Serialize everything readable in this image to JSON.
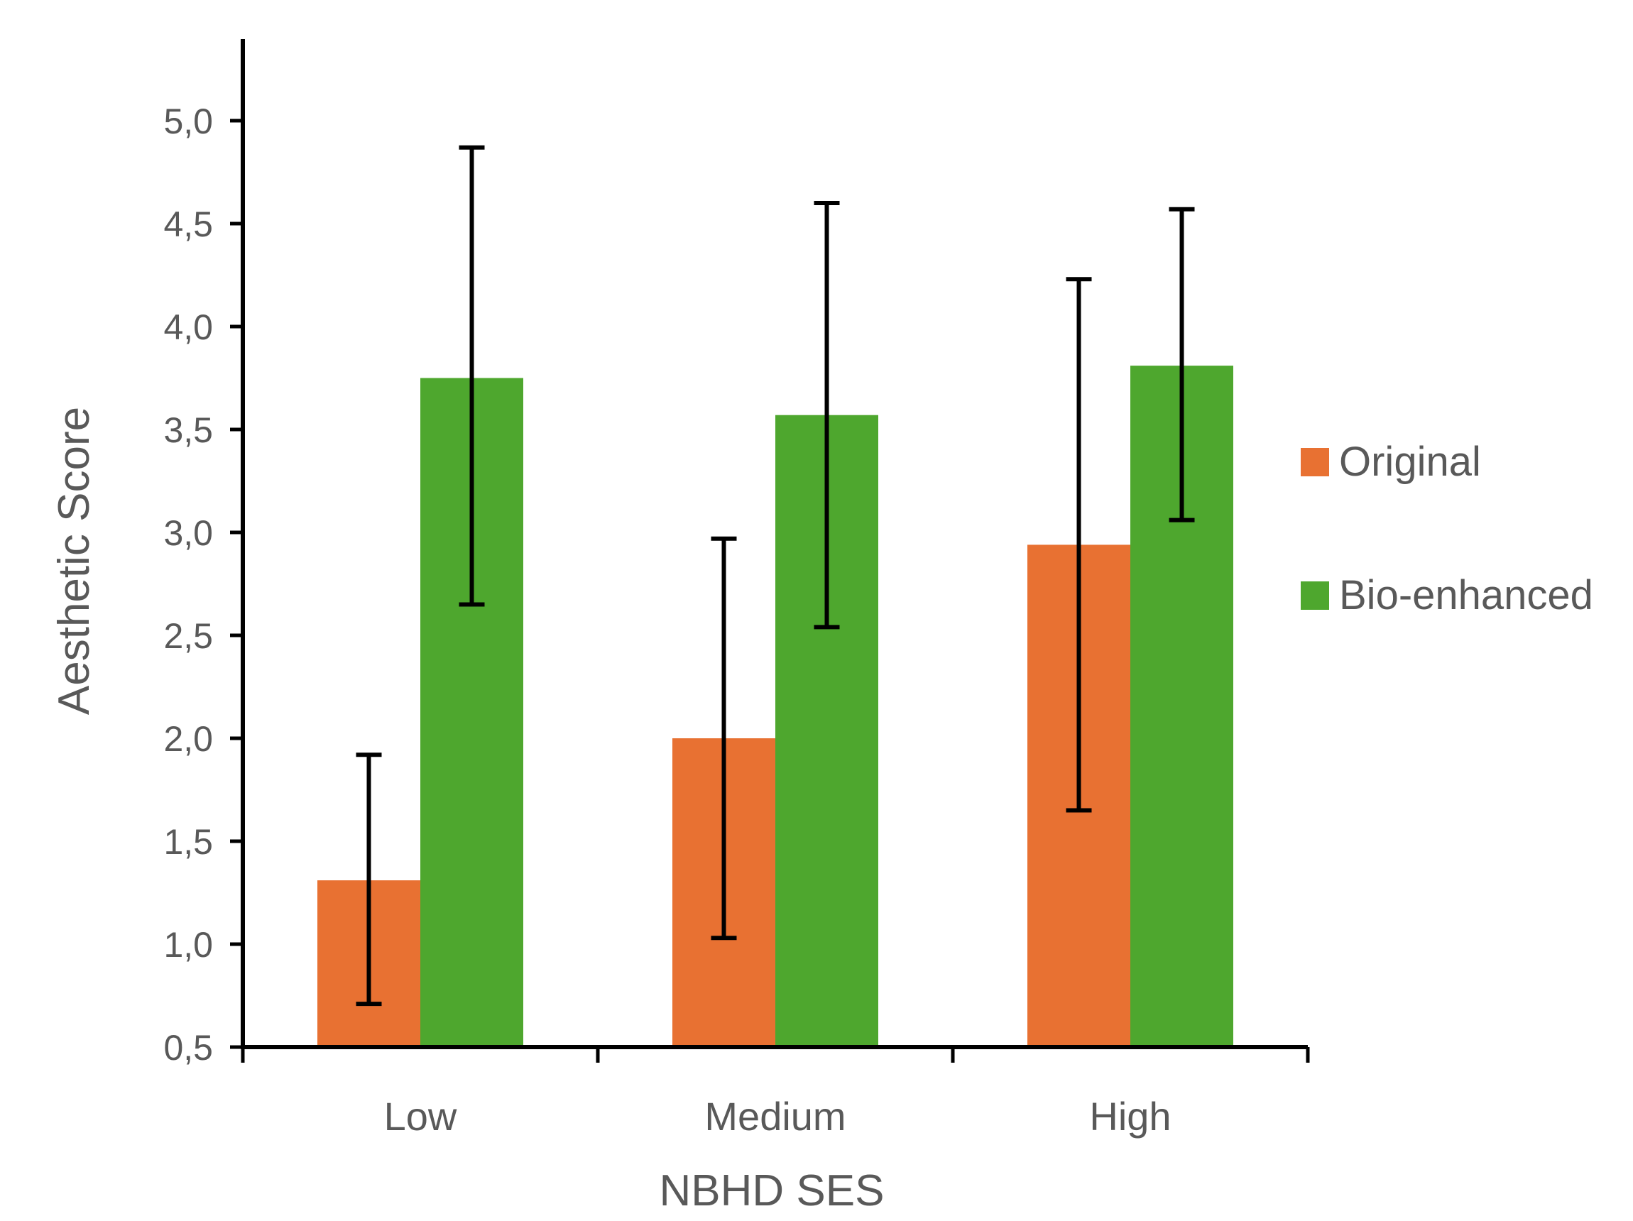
{
  "chart_data": {
    "type": "bar",
    "title": "",
    "xlabel": "NBHD SES",
    "ylabel": "Aesthetic Score",
    "categories": [
      "Low",
      "Medium",
      "High"
    ],
    "ylim": [
      0.5,
      5.3
    ],
    "yticks": [
      0.5,
      1.0,
      1.5,
      2.0,
      2.5,
      3.0,
      3.5,
      4.0,
      4.5,
      5.0
    ],
    "ytick_labels": [
      "0,5",
      "1,0",
      "1,5",
      "2,0",
      "2,5",
      "3,0",
      "3,5",
      "4,0",
      "4,5",
      "5,0"
    ],
    "grid": false,
    "legend_position": "right",
    "series": [
      {
        "name": "Original",
        "color": "#E87132",
        "values": [
          1.31,
          2.0,
          2.94
        ],
        "error_low": [
          0.71,
          1.03,
          1.65
        ],
        "error_high": [
          1.92,
          2.97,
          4.23
        ]
      },
      {
        "name": "Bio-enhanced",
        "color": "#4EA72E",
        "values": [
          3.75,
          3.57,
          3.81
        ],
        "error_low": [
          2.65,
          2.54,
          3.06
        ],
        "error_high": [
          4.87,
          4.6,
          4.57
        ]
      }
    ]
  }
}
